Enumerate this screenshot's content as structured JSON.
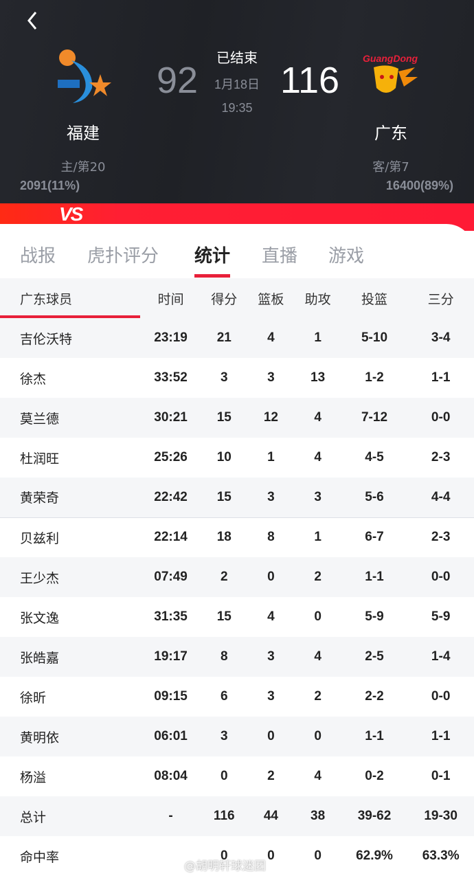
{
  "header": {
    "status": "已结束",
    "date": "1月18日",
    "time": "19:35",
    "home": {
      "name": "福建",
      "rank": "主/第20",
      "score": "92",
      "support": "2091(11%)",
      "logo_text": "福建"
    },
    "away": {
      "name": "广东",
      "rank": "客/第7",
      "score": "116",
      "support": "16400(89%)",
      "logo_text": "GuangDong"
    },
    "vs": "VS"
  },
  "tabs": [
    {
      "label": "战报"
    },
    {
      "label": "虎扑评分"
    },
    {
      "label": "统计",
      "active": true
    },
    {
      "label": "直播"
    },
    {
      "label": "游戏"
    }
  ],
  "table": {
    "columns": [
      "广东球员",
      "时间",
      "得分",
      "篮板",
      "助攻",
      "投篮",
      "三分"
    ],
    "rows": [
      [
        "吉伦沃特",
        "23:19",
        "21",
        "4",
        "1",
        "5-10",
        "3-4"
      ],
      [
        "徐杰",
        "33:52",
        "3",
        "3",
        "13",
        "1-2",
        "1-1"
      ],
      [
        "莫兰德",
        "30:21",
        "15",
        "12",
        "4",
        "7-12",
        "0-0"
      ],
      [
        "杜润旺",
        "25:26",
        "10",
        "1",
        "4",
        "4-5",
        "2-3"
      ],
      [
        "黄荣奇",
        "22:42",
        "15",
        "3",
        "3",
        "5-6",
        "4-4"
      ],
      [
        "贝兹利",
        "22:14",
        "18",
        "8",
        "1",
        "6-7",
        "2-3"
      ],
      [
        "王少杰",
        "07:49",
        "2",
        "0",
        "2",
        "1-1",
        "0-0"
      ],
      [
        "张文逸",
        "31:35",
        "15",
        "4",
        "0",
        "5-9",
        "5-9"
      ],
      [
        "张皓嘉",
        "19:17",
        "8",
        "3",
        "4",
        "2-5",
        "1-4"
      ],
      [
        "徐昕",
        "09:15",
        "6",
        "3",
        "2",
        "2-2",
        "0-0"
      ],
      [
        "黄明依",
        "06:01",
        "3",
        "0",
        "0",
        "1-1",
        "1-1"
      ],
      [
        "杨溢",
        "08:04",
        "0",
        "2",
        "4",
        "0-2",
        "0-1"
      ],
      [
        "总计",
        "-",
        "116",
        "44",
        "38",
        "39-62",
        "19-30"
      ],
      [
        "命中率",
        "",
        "0",
        "0",
        "0",
        "62.9%",
        "63.3%"
      ]
    ]
  },
  "watermark": "@胡明轩球迷团",
  "colors": {
    "accent": "#e8203a",
    "header_bg": "#23252a"
  }
}
